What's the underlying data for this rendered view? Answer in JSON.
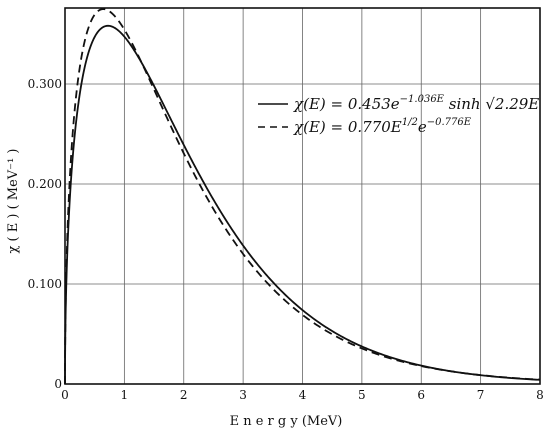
{
  "chart_data": {
    "type": "line",
    "title": "",
    "xlabel": "E n e r g y (MeV)",
    "ylabel": "χ ( E ) ( MeV⁻¹ )",
    "xlim": [
      0,
      8
    ],
    "ylim": [
      0,
      0.376
    ],
    "x_ticks": [
      "0",
      "1",
      "2",
      "3",
      "4",
      "5",
      "6",
      "7",
      "8"
    ],
    "x_tick_values": [
      0,
      1,
      2,
      3,
      4,
      5,
      6,
      7,
      8
    ],
    "y_ticks": [
      "0",
      "0.100",
      "0.200",
      "0.300"
    ],
    "y_tick_values": [
      0,
      0.1,
      0.2,
      0.3
    ],
    "grid": true,
    "legend_position": "top-right",
    "series": [
      {
        "name": "χ(E) = 0.453e^(−1.036E) sinh √(2.29E)",
        "style": "solid",
        "color": "#111111",
        "a": 0.453,
        "b": 1.036,
        "c": 2.29
      },
      {
        "name": "χ(E) = 0.770E^(1/2) e^(−0.776E)",
        "style": "dashed",
        "color": "#111111",
        "a": 0.77,
        "b": 0.776
      }
    ],
    "legend": {
      "solid": {
        "lhs": "χ(E) = 0.453e",
        "exp": "−1.036E",
        "rhs": " sinh √2.29E"
      },
      "dashed": {
        "lhs": "χ(E) = 0.770E",
        "exp1": "1/2",
        "mid": "e",
        "exp2": "−0.776E"
      }
    }
  }
}
